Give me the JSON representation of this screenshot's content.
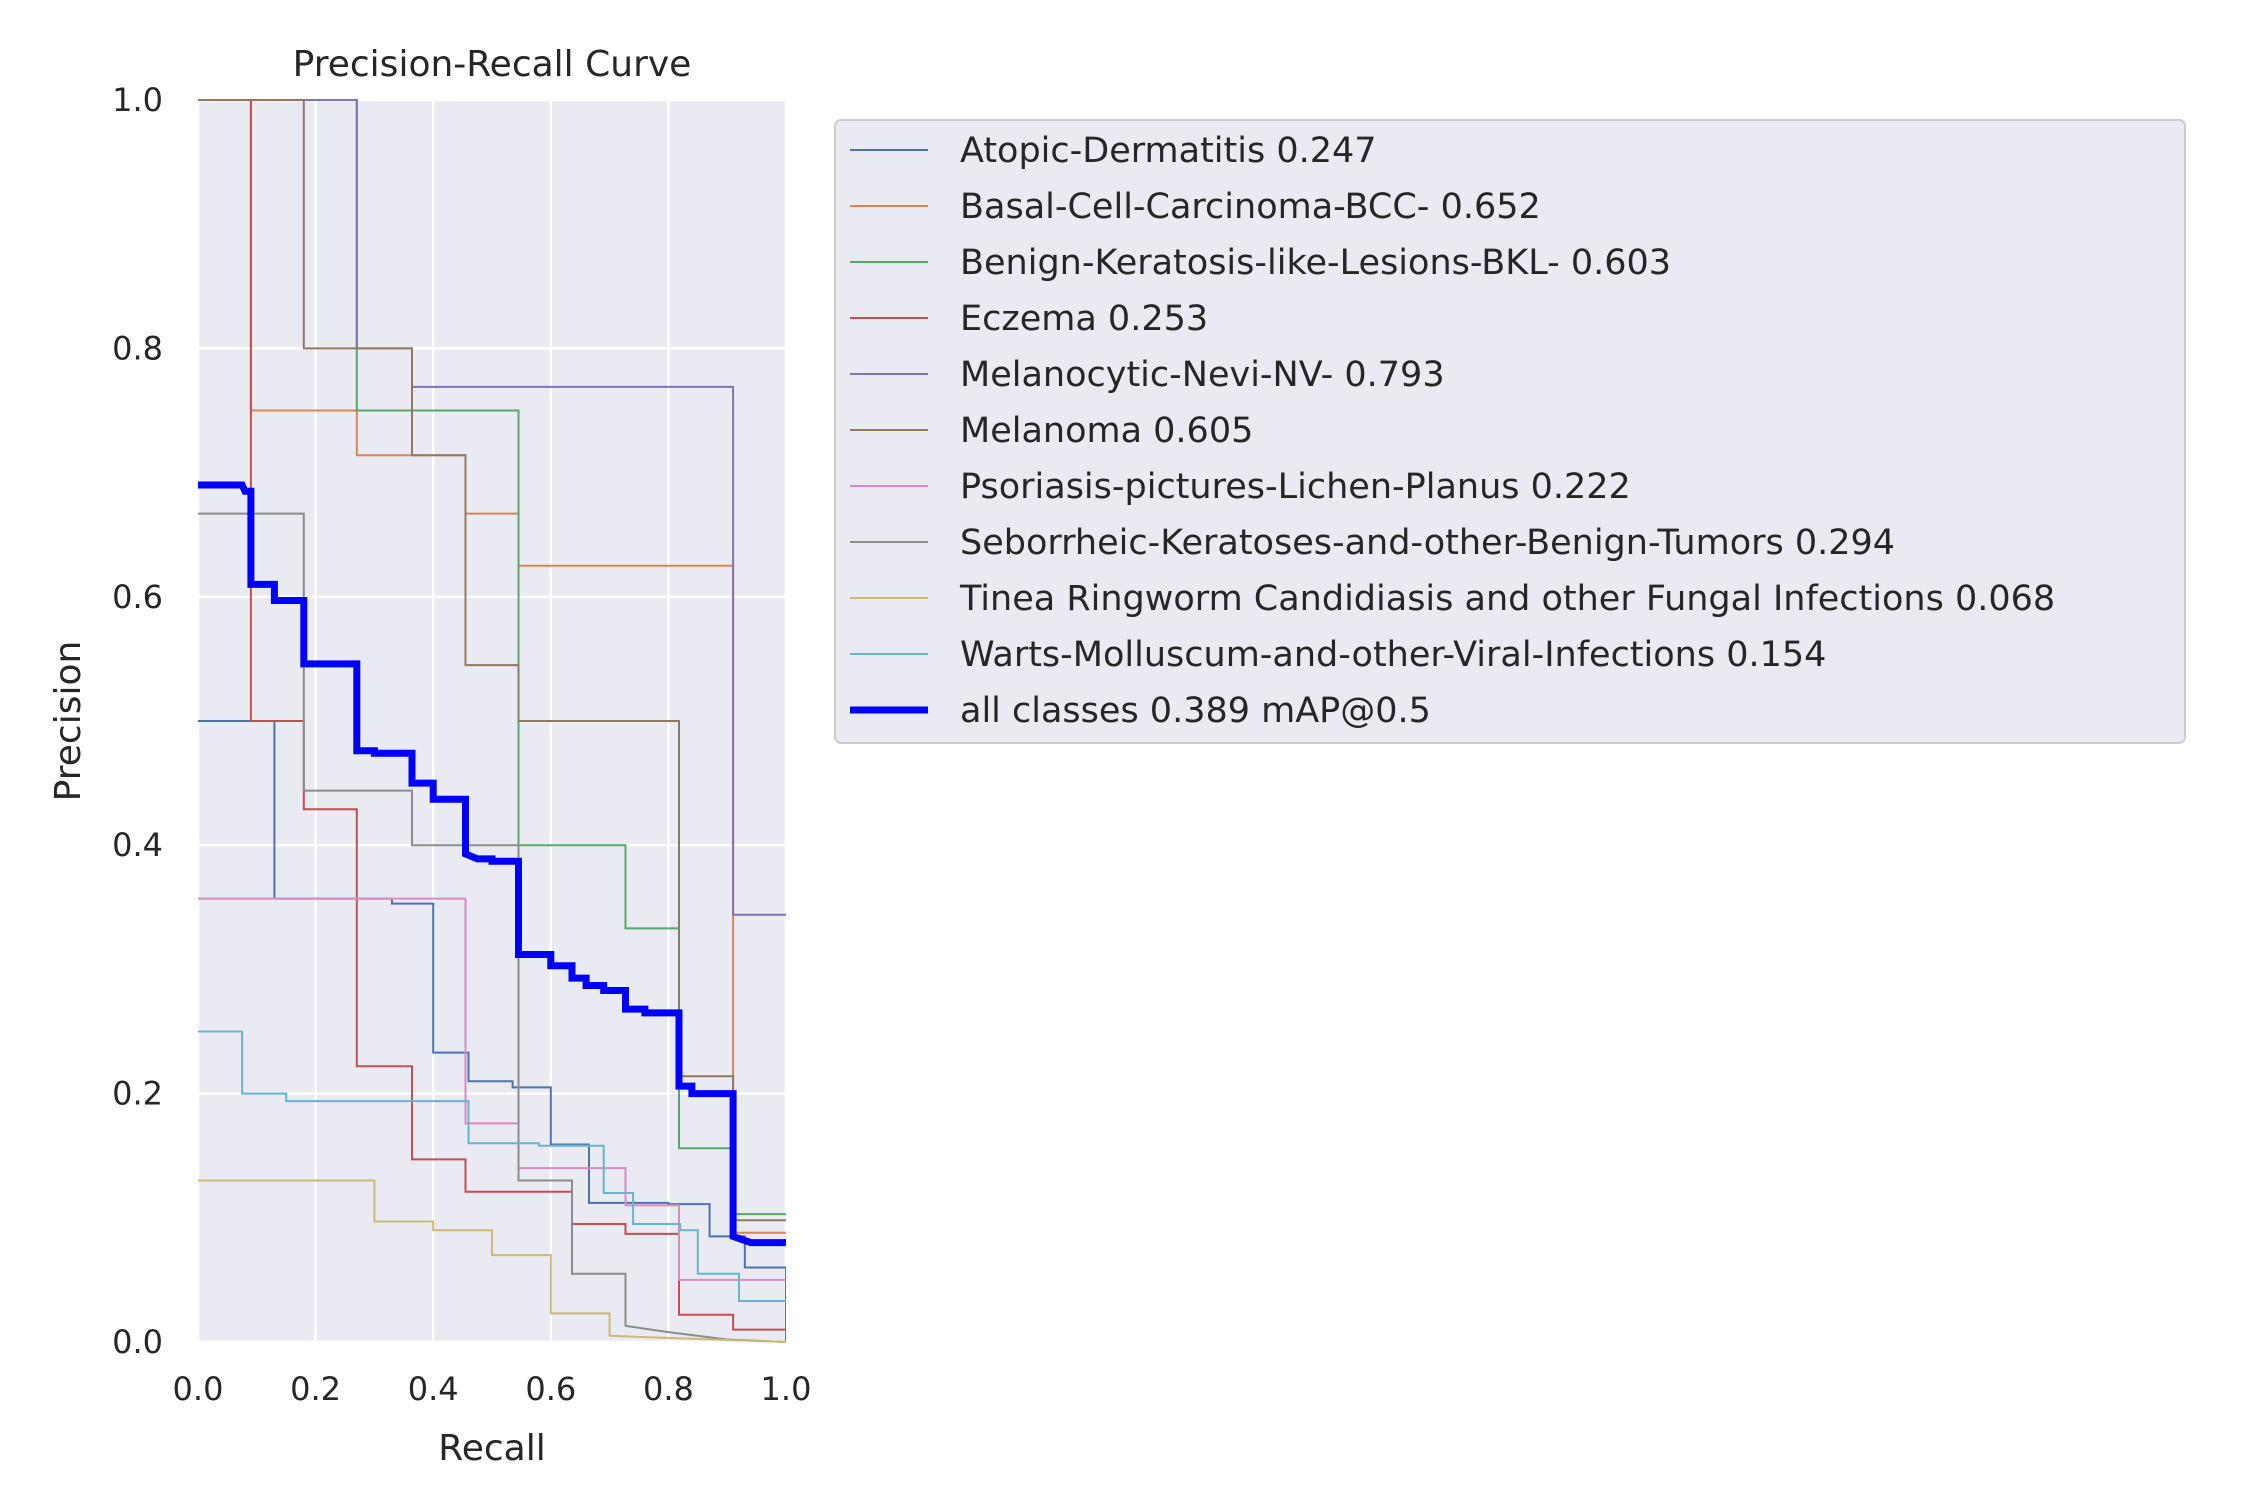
{
  "chart_data": {
    "type": "line",
    "title": "Precision-Recall Curve",
    "xlabel": "Recall",
    "ylabel": "Precision",
    "xlim": [
      0,
      1
    ],
    "ylim": [
      0,
      1
    ],
    "grid": true,
    "legend_position": "outside-right",
    "x_ticks": [
      "0.0",
      "0.2",
      "0.4",
      "0.6",
      "0.8",
      "1.0"
    ],
    "y_ticks": [
      "0.0",
      "0.2",
      "0.4",
      "0.6",
      "0.8",
      "1.0"
    ],
    "series": [
      {
        "name": "Atopic-Dermatitis 0.247",
        "color": "#4c72b0",
        "width": 2,
        "points": [
          [
            0,
            0.5
          ],
          [
            0.13,
            0.5
          ],
          [
            0.13,
            0.357
          ],
          [
            0.33,
            0.357
          ],
          [
            0.33,
            0.353
          ],
          [
            0.4,
            0.353
          ],
          [
            0.4,
            0.233
          ],
          [
            0.46,
            0.233
          ],
          [
            0.46,
            0.21
          ],
          [
            0.535,
            0.21
          ],
          [
            0.535,
            0.205
          ],
          [
            0.6,
            0.205
          ],
          [
            0.6,
            0.159
          ],
          [
            0.665,
            0.159
          ],
          [
            0.665,
            0.112
          ],
          [
            0.8,
            0.112
          ],
          [
            0.8,
            0.111
          ],
          [
            0.87,
            0.111
          ],
          [
            0.87,
            0.085
          ],
          [
            0.93,
            0.085
          ],
          [
            0.93,
            0.06
          ],
          [
            1.0,
            0.06
          ],
          [
            1.0,
            0.0
          ]
        ]
      },
      {
        "name": "Basal-Cell-Carcinoma-BCC- 0.652",
        "color": "#dd8452",
        "width": 2,
        "points": [
          [
            0,
            1.0
          ],
          [
            0.09,
            1.0
          ],
          [
            0.09,
            0.75
          ],
          [
            0.27,
            0.75
          ],
          [
            0.27,
            0.714
          ],
          [
            0.455,
            0.714
          ],
          [
            0.455,
            0.667
          ],
          [
            0.545,
            0.667
          ],
          [
            0.545,
            0.625
          ],
          [
            0.91,
            0.625
          ],
          [
            0.91,
            0.088
          ],
          [
            1.0,
            0.088
          ]
        ]
      },
      {
        "name": "Benign-Keratosis-like-Lesions-BKL- 0.603",
        "color": "#55a868",
        "width": 2,
        "points": [
          [
            0,
            1.0
          ],
          [
            0.27,
            1.0
          ],
          [
            0.27,
            0.75
          ],
          [
            0.545,
            0.75
          ],
          [
            0.545,
            0.4
          ],
          [
            0.727,
            0.4
          ],
          [
            0.727,
            0.333
          ],
          [
            0.818,
            0.333
          ],
          [
            0.818,
            0.156
          ],
          [
            0.91,
            0.156
          ],
          [
            0.91,
            0.103
          ],
          [
            1.0,
            0.103
          ]
        ]
      },
      {
        "name": "Eczema 0.253",
        "color": "#c44e52",
        "width": 2,
        "points": [
          [
            0.09,
            1.0
          ],
          [
            0.09,
            0.5
          ],
          [
            0.18,
            0.5
          ],
          [
            0.18,
            0.429
          ],
          [
            0.27,
            0.429
          ],
          [
            0.27,
            0.222
          ],
          [
            0.364,
            0.222
          ],
          [
            0.364,
            0.147
          ],
          [
            0.455,
            0.147
          ],
          [
            0.455,
            0.121
          ],
          [
            0.636,
            0.121
          ],
          [
            0.636,
            0.095
          ],
          [
            0.727,
            0.095
          ],
          [
            0.727,
            0.087
          ],
          [
            0.818,
            0.087
          ],
          [
            0.818,
            0.022
          ],
          [
            0.91,
            0.022
          ],
          [
            0.91,
            0.01
          ],
          [
            1.0,
            0.01
          ]
        ]
      },
      {
        "name": "Melanocytic-Nevi-NV- 0.793",
        "color": "#8172b3",
        "width": 2,
        "points": [
          [
            0,
            1.0
          ],
          [
            0.27,
            1.0
          ],
          [
            0.27,
            0.8
          ],
          [
            0.364,
            0.8
          ],
          [
            0.364,
            0.769
          ],
          [
            0.91,
            0.769
          ],
          [
            0.91,
            0.344
          ],
          [
            1.0,
            0.344
          ]
        ]
      },
      {
        "name": "Melanoma 0.605",
        "color": "#937860",
        "width": 2,
        "points": [
          [
            0,
            1.0
          ],
          [
            0.18,
            1.0
          ],
          [
            0.18,
            0.8
          ],
          [
            0.364,
            0.8
          ],
          [
            0.364,
            0.714
          ],
          [
            0.455,
            0.714
          ],
          [
            0.455,
            0.545
          ],
          [
            0.545,
            0.545
          ],
          [
            0.545,
            0.5
          ],
          [
            0.818,
            0.5
          ],
          [
            0.818,
            0.214
          ],
          [
            0.91,
            0.214
          ],
          [
            0.91,
            0.098
          ],
          [
            1.0,
            0.098
          ]
        ]
      },
      {
        "name": "Psoriasis-pictures-Lichen-Planus 0.222",
        "color": "#da8bc3",
        "width": 2,
        "points": [
          [
            0,
            0.357
          ],
          [
            0.455,
            0.357
          ],
          [
            0.455,
            0.176
          ],
          [
            0.545,
            0.176
          ],
          [
            0.545,
            0.14
          ],
          [
            0.727,
            0.14
          ],
          [
            0.727,
            0.11
          ],
          [
            0.818,
            0.11
          ],
          [
            0.818,
            0.05
          ],
          [
            1.0,
            0.05
          ]
        ]
      },
      {
        "name": "Seborrheic-Keratoses-and-other-Benign-Tumors 0.294",
        "color": "#8c8c8c",
        "width": 2,
        "points": [
          [
            0,
            0.667
          ],
          [
            0.18,
            0.667
          ],
          [
            0.18,
            0.444
          ],
          [
            0.364,
            0.444
          ],
          [
            0.364,
            0.4
          ],
          [
            0.545,
            0.4
          ],
          [
            0.545,
            0.13
          ],
          [
            0.636,
            0.13
          ],
          [
            0.636,
            0.055
          ],
          [
            0.727,
            0.055
          ],
          [
            0.727,
            0.013
          ],
          [
            0.8,
            0.008
          ],
          [
            0.9,
            0.002
          ],
          [
            1.0,
            0.0
          ]
        ]
      },
      {
        "name": "Tinea Ringworm Candidiasis and other Fungal Infections 0.068",
        "color": "#ccb974",
        "width": 2,
        "points": [
          [
            0,
            0.13
          ],
          [
            0.3,
            0.13
          ],
          [
            0.3,
            0.097
          ],
          [
            0.4,
            0.097
          ],
          [
            0.4,
            0.09
          ],
          [
            0.5,
            0.09
          ],
          [
            0.5,
            0.07
          ],
          [
            0.6,
            0.07
          ],
          [
            0.6,
            0.023
          ],
          [
            0.7,
            0.023
          ],
          [
            0.7,
            0.005
          ],
          [
            1.0,
            0.0
          ]
        ]
      },
      {
        "name": "Warts-Molluscum-and-other-Viral-Infections 0.154",
        "color": "#64b5cd",
        "width": 2,
        "points": [
          [
            0,
            0.25
          ],
          [
            0.075,
            0.25
          ],
          [
            0.075,
            0.2
          ],
          [
            0.15,
            0.2
          ],
          [
            0.15,
            0.194
          ],
          [
            0.46,
            0.194
          ],
          [
            0.46,
            0.16
          ],
          [
            0.58,
            0.16
          ],
          [
            0.58,
            0.158
          ],
          [
            0.69,
            0.158
          ],
          [
            0.69,
            0.12
          ],
          [
            0.74,
            0.12
          ],
          [
            0.74,
            0.095
          ],
          [
            0.82,
            0.095
          ],
          [
            0.82,
            0.09
          ],
          [
            0.85,
            0.09
          ],
          [
            0.85,
            0.055
          ],
          [
            0.92,
            0.055
          ],
          [
            0.92,
            0.033
          ],
          [
            1.0,
            0.033
          ]
        ]
      },
      {
        "name": "all classes 0.389 mAP@0.5",
        "color": "#0000ff",
        "width": 7,
        "points": [
          [
            0,
            0.69
          ],
          [
            0.075,
            0.69
          ],
          [
            0.08,
            0.685
          ],
          [
            0.09,
            0.685
          ],
          [
            0.09,
            0.61
          ],
          [
            0.13,
            0.61
          ],
          [
            0.13,
            0.597
          ],
          [
            0.18,
            0.597
          ],
          [
            0.18,
            0.546
          ],
          [
            0.27,
            0.546
          ],
          [
            0.27,
            0.476
          ],
          [
            0.3,
            0.476
          ],
          [
            0.3,
            0.474
          ],
          [
            0.364,
            0.474
          ],
          [
            0.364,
            0.45
          ],
          [
            0.4,
            0.45
          ],
          [
            0.4,
            0.437
          ],
          [
            0.455,
            0.437
          ],
          [
            0.455,
            0.393
          ],
          [
            0.475,
            0.389
          ],
          [
            0.5,
            0.389
          ],
          [
            0.5,
            0.387
          ],
          [
            0.545,
            0.387
          ],
          [
            0.545,
            0.312
          ],
          [
            0.6,
            0.312
          ],
          [
            0.6,
            0.303
          ],
          [
            0.636,
            0.303
          ],
          [
            0.636,
            0.293
          ],
          [
            0.66,
            0.293
          ],
          [
            0.66,
            0.287
          ],
          [
            0.69,
            0.287
          ],
          [
            0.69,
            0.283
          ],
          [
            0.727,
            0.283
          ],
          [
            0.727,
            0.268
          ],
          [
            0.76,
            0.268
          ],
          [
            0.76,
            0.265
          ],
          [
            0.818,
            0.265
          ],
          [
            0.818,
            0.206
          ],
          [
            0.84,
            0.206
          ],
          [
            0.84,
            0.2
          ],
          [
            0.91,
            0.2
          ],
          [
            0.91,
            0.085
          ],
          [
            0.94,
            0.08
          ],
          [
            1.0,
            0.08
          ]
        ]
      }
    ]
  }
}
